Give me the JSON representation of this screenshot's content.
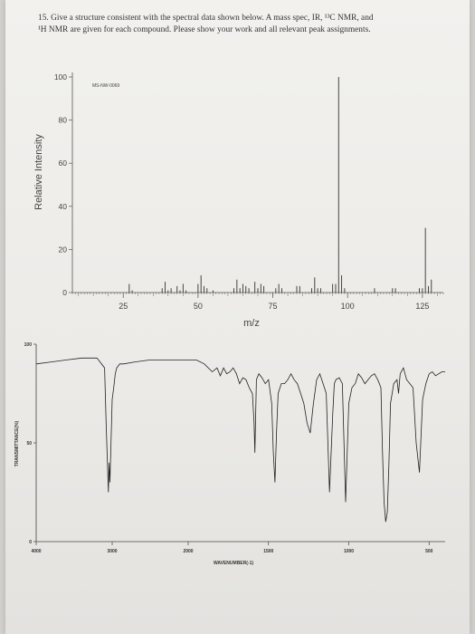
{
  "question": {
    "line1": "15.  Give a structure consistent with the spectral data shown below.  A mass spec, IR, ¹³C NMR, and",
    "line2": "¹H NMR are given for each compound.  Please show your work and all relevant peak assignments."
  },
  "chart_data": [
    {
      "type": "bar",
      "id_label": "MS-NW-0069",
      "xlabel": "m/z",
      "ylabel": "Relative Intensity",
      "xlim": [
        8,
        132
      ],
      "ylim": [
        0,
        100
      ],
      "x_ticks": [
        25,
        50,
        75,
        100,
        125
      ],
      "y_ticks": [
        0,
        20,
        40,
        60,
        80,
        100
      ],
      "peaks": [
        {
          "x": 27,
          "y": 4
        },
        {
          "x": 28,
          "y": 1
        },
        {
          "x": 38,
          "y": 2
        },
        {
          "x": 39,
          "y": 5
        },
        {
          "x": 40,
          "y": 1
        },
        {
          "x": 41,
          "y": 2
        },
        {
          "x": 43,
          "y": 3
        },
        {
          "x": 44,
          "y": 1
        },
        {
          "x": 45,
          "y": 4
        },
        {
          "x": 46,
          "y": 1
        },
        {
          "x": 50,
          "y": 4
        },
        {
          "x": 51,
          "y": 8
        },
        {
          "x": 52,
          "y": 3
        },
        {
          "x": 53,
          "y": 2
        },
        {
          "x": 55,
          "y": 1
        },
        {
          "x": 62,
          "y": 2
        },
        {
          "x": 63,
          "y": 6
        },
        {
          "x": 64,
          "y": 2
        },
        {
          "x": 65,
          "y": 4
        },
        {
          "x": 66,
          "y": 3
        },
        {
          "x": 67,
          "y": 2
        },
        {
          "x": 69,
          "y": 5
        },
        {
          "x": 70,
          "y": 2
        },
        {
          "x": 71,
          "y": 4
        },
        {
          "x": 72,
          "y": 3
        },
        {
          "x": 76,
          "y": 2
        },
        {
          "x": 77,
          "y": 4
        },
        {
          "x": 78,
          "y": 2
        },
        {
          "x": 83,
          "y": 3
        },
        {
          "x": 84,
          "y": 3
        },
        {
          "x": 88,
          "y": 2
        },
        {
          "x": 89,
          "y": 7
        },
        {
          "x": 90,
          "y": 2
        },
        {
          "x": 91,
          "y": 2
        },
        {
          "x": 95,
          "y": 4
        },
        {
          "x": 96,
          "y": 4
        },
        {
          "x": 97,
          "y": 100
        },
        {
          "x": 98,
          "y": 8
        },
        {
          "x": 99,
          "y": 2
        },
        {
          "x": 109,
          "y": 2
        },
        {
          "x": 115,
          "y": 2
        },
        {
          "x": 116,
          "y": 2
        },
        {
          "x": 124,
          "y": 2
        },
        {
          "x": 125,
          "y": 2
        },
        {
          "x": 126,
          "y": 30
        },
        {
          "x": 127,
          "y": 3
        },
        {
          "x": 128,
          "y": 6
        }
      ]
    },
    {
      "type": "line",
      "xlabel": "WAVENUMBER(-1)",
      "ylabel": "TRANSMITTANCE(%)",
      "xlim": [
        4000,
        400
      ],
      "ylim": [
        0,
        100
      ],
      "x_ticks": [
        4000,
        3000,
        2000,
        1500,
        1000,
        500
      ],
      "x_tick_labels": [
        "4000",
        "3000",
        "2000",
        "1500",
        "1000",
        "500"
      ],
      "y_ticks": [
        0,
        50,
        100
      ],
      "series": [
        {
          "x": [
            4000,
            3800,
            3600,
            3400,
            3200,
            3100,
            3080,
            3050,
            3040,
            3030,
            3000,
            2980,
            2960,
            2940,
            2900,
            2850,
            2700,
            2500,
            2300,
            2100,
            2000,
            1950,
            1900,
            1850,
            1820,
            1800,
            1780,
            1760,
            1740,
            1720,
            1700,
            1680,
            1660,
            1640,
            1620,
            1600,
            1590,
            1585,
            1575,
            1560,
            1540,
            1520,
            1500,
            1480,
            1470,
            1460,
            1450,
            1440,
            1420,
            1400,
            1380,
            1360,
            1340,
            1320,
            1300,
            1280,
            1260,
            1240,
            1220,
            1200,
            1180,
            1160,
            1140,
            1120,
            1100,
            1090,
            1080,
            1060,
            1040,
            1030,
            1020,
            1000,
            980,
            960,
            940,
            920,
            900,
            880,
            860,
            840,
            820,
            800,
            790,
            780,
            770,
            760,
            750,
            740,
            720,
            700,
            690,
            680,
            660,
            640,
            620,
            600,
            580,
            560,
            540,
            520,
            500,
            480,
            460,
            440,
            420,
            400
          ],
          "y": [
            90,
            91,
            92,
            93,
            93,
            88,
            60,
            25,
            40,
            30,
            72,
            78,
            85,
            88,
            90,
            90,
            91,
            92,
            92,
            92,
            92,
            92,
            90,
            86,
            88,
            84,
            88,
            85,
            86,
            88,
            85,
            80,
            83,
            82,
            78,
            75,
            60,
            45,
            82,
            85,
            83,
            80,
            82,
            70,
            45,
            30,
            55,
            75,
            80,
            80,
            82,
            85,
            82,
            80,
            75,
            70,
            60,
            55,
            70,
            82,
            85,
            80,
            75,
            25,
            65,
            80,
            82,
            83,
            80,
            50,
            20,
            70,
            78,
            80,
            85,
            83,
            80,
            82,
            84,
            85,
            82,
            78,
            45,
            20,
            10,
            15,
            40,
            70,
            80,
            82,
            75,
            85,
            88,
            82,
            80,
            78,
            50,
            35,
            72,
            80,
            85,
            86,
            84,
            85,
            86,
            86
          ]
        }
      ]
    }
  ]
}
